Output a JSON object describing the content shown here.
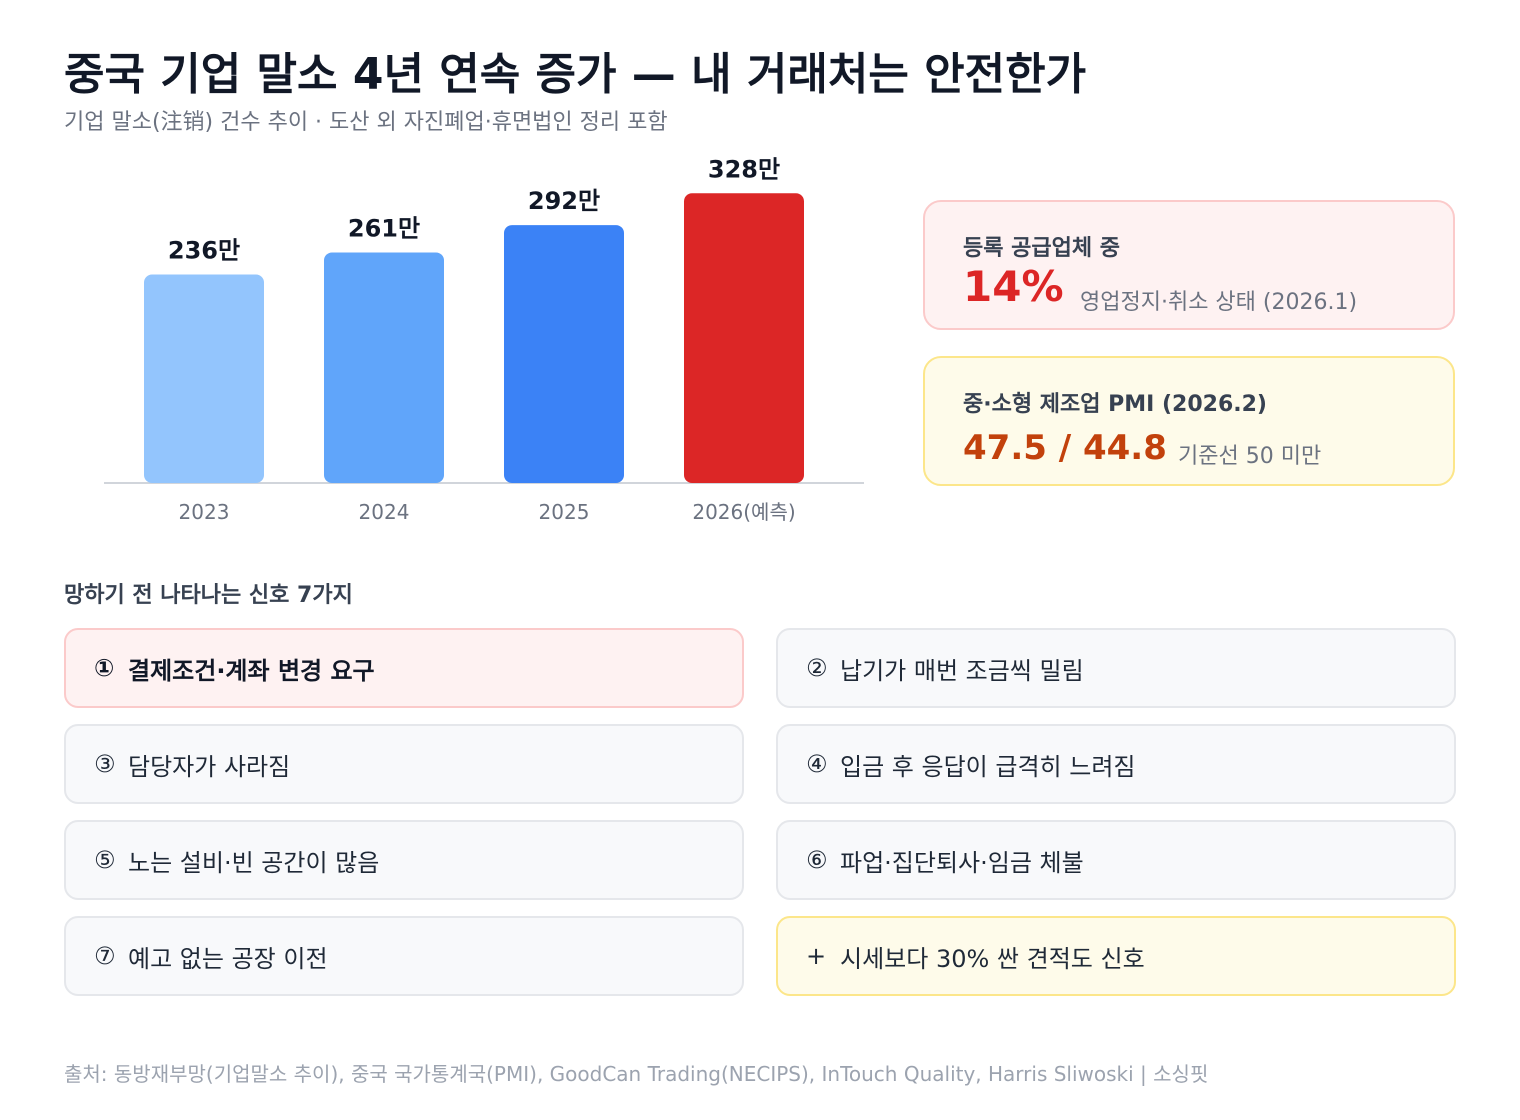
{
  "header": {
    "title": "중국 기업 말소 4년 연속 증가 — 내 거래처는 안전한가",
    "subtitle": "기업 말소(注销) 건수 추이 · 도산 외 자진폐업·휴면법인 정리 포함"
  },
  "chart_data": {
    "type": "bar",
    "categories": [
      "2023",
      "2024",
      "2025",
      "2026(예측)"
    ],
    "values": [
      236,
      261,
      292,
      328
    ],
    "data_labels": [
      "236만",
      "261만",
      "292만",
      "328만"
    ],
    "unit": "만",
    "colors": [
      "#93c5fd",
      "#60a5fa",
      "#3b82f6",
      "#dc2626"
    ],
    "title": "",
    "xlabel": "",
    "ylabel": "",
    "ylim": [
      0,
      360
    ],
    "grid": false,
    "y_axis_visible": false
  },
  "stats": [
    {
      "label": "등록 공급업체 중",
      "value": "14%",
      "note": "영업정지·취소 상태 (2026.1)",
      "accent": "#dc2626"
    },
    {
      "label": "중·소형 제조업 PMI (2026.2)",
      "value": "47.5 / 44.8",
      "note": "기준선 50 미만",
      "accent": "#c2410c"
    }
  ],
  "signals": {
    "heading": "망하기 전 나타나는 신호 7가지",
    "items": [
      {
        "num": "①",
        "text": "결제조건·계좌 변경 요구"
      },
      {
        "num": "②",
        "text": "납기가 매번 조금씩 밀림"
      },
      {
        "num": "③",
        "text": "담당자가 사라짐"
      },
      {
        "num": "④",
        "text": "입금 후 응답이 급격히 느려짐"
      },
      {
        "num": "⑤",
        "text": "노는 설비·빈 공간이 많음"
      },
      {
        "num": "⑥",
        "text": "파업·집단퇴사·임금 체불"
      },
      {
        "num": "⑦",
        "text": "예고 없는 공장 이전"
      },
      {
        "num": "+",
        "text": "시세보다 30% 싼 견적도 신호"
      }
    ]
  },
  "footer": {
    "source": "출처: 동방재부망(기업말소 추이), 중국 국가통계국(PMI), GoodCan Trading(NECIPS), InTouch Quality, Harris Sliwoski | 소싱핏"
  }
}
